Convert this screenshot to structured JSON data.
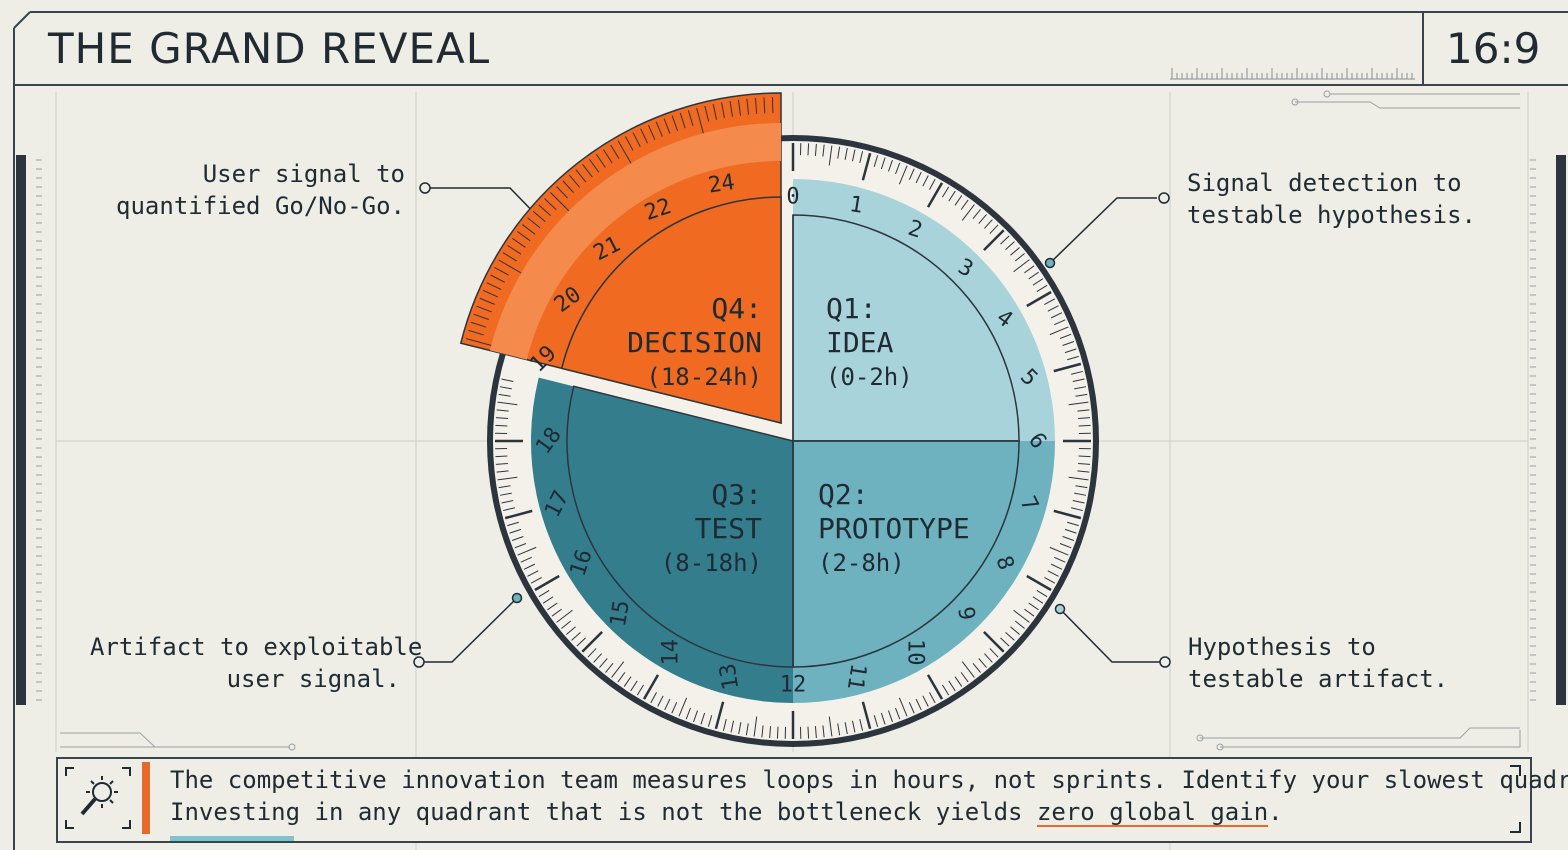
{
  "header": {
    "title": "THE GRAND REVEAL",
    "aspect_ratio": "16:9"
  },
  "cycle": {
    "quadrants": [
      {
        "id": "q1",
        "label": "Q1:",
        "name": "IDEA",
        "range": "(0-2h)",
        "color": "#a9d3da"
      },
      {
        "id": "q2",
        "label": "Q2:",
        "name": "PROTOTYPE",
        "range": "(2-8h)",
        "color": "#6fb2bf"
      },
      {
        "id": "q3",
        "label": "Q3:",
        "name": "TEST",
        "range": "(8-18h)",
        "color": "#347d8d"
      },
      {
        "id": "q4",
        "label": "Q4:",
        "name": "DECISION",
        "range": "(18-24h)",
        "color": "#f06a22"
      }
    ],
    "hour_labels": [
      "0",
      "1",
      "2",
      "3",
      "4",
      "5",
      "6",
      "7",
      "8",
      "9",
      "10",
      "11",
      "12",
      "13",
      "14",
      "15",
      "16",
      "17",
      "18",
      "19",
      "20",
      "21",
      "22",
      "24"
    ]
  },
  "callouts": {
    "top_left": [
      "User signal to",
      "quantified Go/No-Go."
    ],
    "top_right": [
      "Signal detection to",
      "testable hypothesis."
    ],
    "bottom_left": [
      "Artifact to exploitable",
      "user signal."
    ],
    "bottom_right": [
      "Hypothesis to",
      "testable artifact."
    ]
  },
  "footer": {
    "icon": "magnifier-bug-icon",
    "line1": "The competitive innovation team measures loops in hours, not sprints. Identify your slowest quadrant.",
    "line2_prefix": "Investing in any quadrant that is not the bottleneck yields ",
    "line2_highlight": "zero global gain",
    "line2_suffix": "."
  },
  "colors": {
    "accent": "#e8692c",
    "dark": "#1f2a33",
    "background": "#eeede6"
  }
}
